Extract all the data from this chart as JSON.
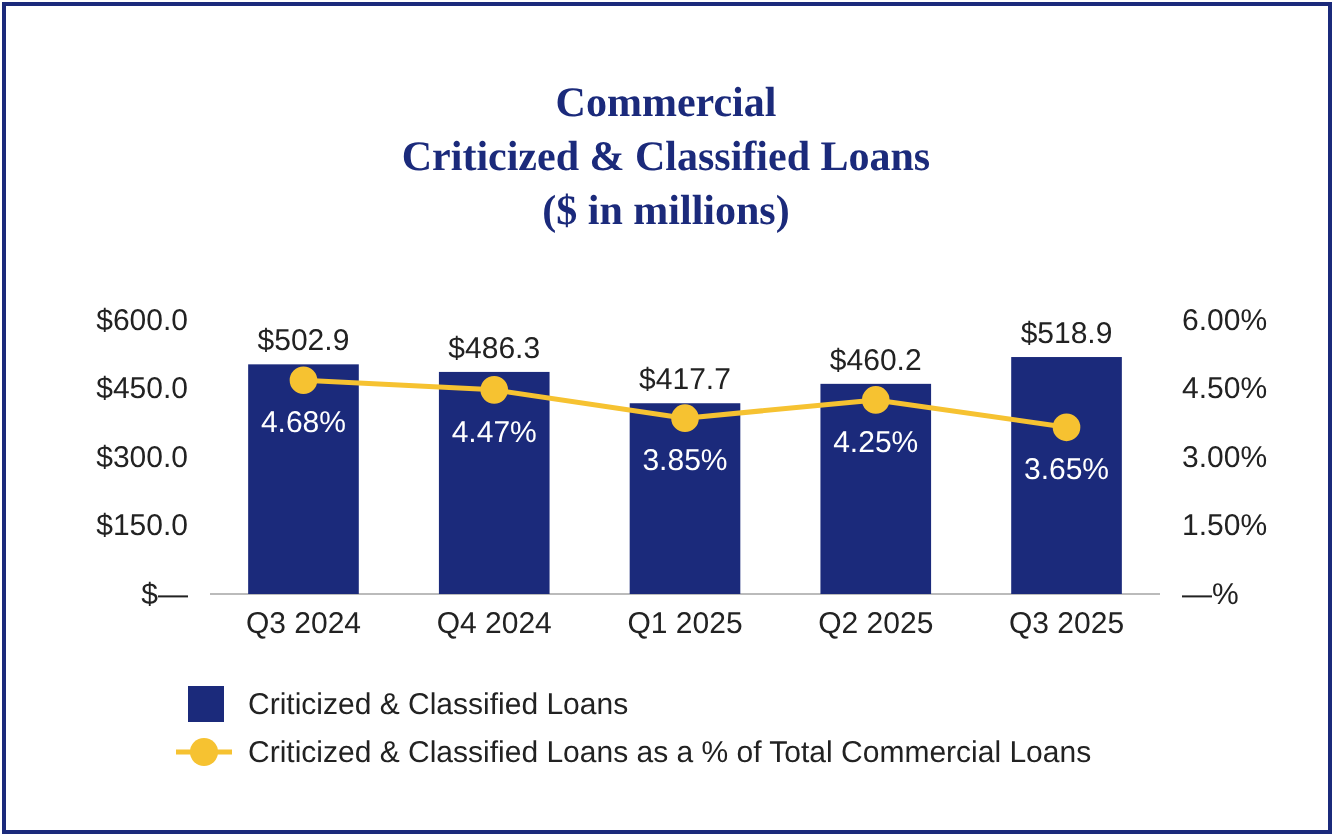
{
  "chart_data": {
    "type": "bar",
    "title": "Commercial\nCriticized & Classified Loans",
    "subtitle": "($ in millions)",
    "categories": [
      "Q3 2024",
      "Q4 2024",
      "Q1 2025",
      "Q2 2025",
      "Q3 2025"
    ],
    "series": [
      {
        "name": "Criticized & Classified Loans",
        "color": "#1b2a7b",
        "values": [
          502.9,
          486.3,
          417.7,
          460.2,
          518.9
        ],
        "value_labels": [
          "$502.9",
          "$486.3",
          "$417.7",
          "$460.2",
          "$518.9"
        ]
      },
      {
        "name": "Criticized & Classified Loans as a % of Total Commercial Loans",
        "type": "line",
        "axis": "y2",
        "color": "#f6c231",
        "marker": "circle",
        "values": [
          4.68,
          4.47,
          3.85,
          4.25,
          3.65
        ],
        "value_labels": [
          "4.68%",
          "4.47%",
          "3.85%",
          "4.25%",
          "3.65%"
        ]
      }
    ],
    "ylim": [
      0,
      600
    ],
    "yticks": [
      {
        "value": 0,
        "label": "$—"
      },
      {
        "value": 150,
        "label": "$150.0"
      },
      {
        "value": 300,
        "label": "$300.0"
      },
      {
        "value": 450,
        "label": "$450.0"
      },
      {
        "value": 600,
        "label": "$600.0"
      }
    ],
    "y2lim": [
      0,
      6
    ],
    "y2ticks": [
      {
        "value": 0,
        "label": "—%"
      },
      {
        "value": 1.5,
        "label": "1.50%"
      },
      {
        "value": 3,
        "label": "3.00%"
      },
      {
        "value": 4.5,
        "label": "4.50%"
      },
      {
        "value": 6,
        "label": "6.00%"
      }
    ],
    "legend": "bottom left",
    "grid": false
  }
}
